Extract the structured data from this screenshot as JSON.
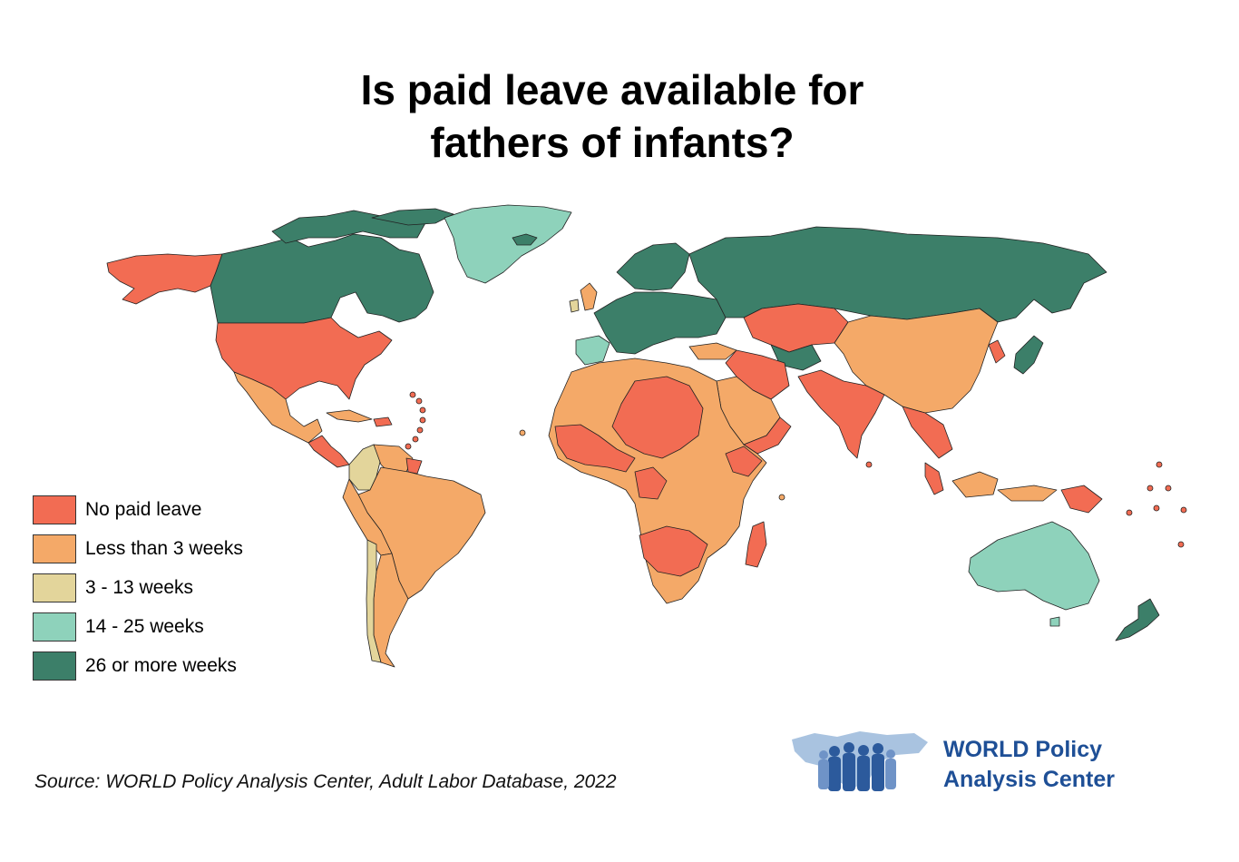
{
  "title": {
    "line1": "Is paid leave available for",
    "line2": "fathers of infants?"
  },
  "colors": {
    "no_paid_leave": "#f26c53",
    "less_than_3_weeks": "#f4a968",
    "weeks_3_13": "#e3d59b",
    "weeks_14_25": "#8ed2bb",
    "weeks_26_plus": "#3c7f69",
    "border": "#222222"
  },
  "legend": {
    "items": [
      {
        "label": "No paid leave",
        "color": "#f26c53"
      },
      {
        "label": "Less than 3 weeks",
        "color": "#f4a968"
      },
      {
        "label": "3 - 13 weeks",
        "color": "#e3d59b"
      },
      {
        "label": "14 - 25 weeks",
        "color": "#8ed2bb"
      },
      {
        "label": "26 or more weeks",
        "color": "#3c7f69"
      }
    ]
  },
  "source": "Source: WORLD Policy Analysis Center, Adult Labor Database, 2022",
  "logo": {
    "line1": "WORLD Policy",
    "line2": "Analysis Center",
    "icon": "world-map-people-icon"
  }
}
